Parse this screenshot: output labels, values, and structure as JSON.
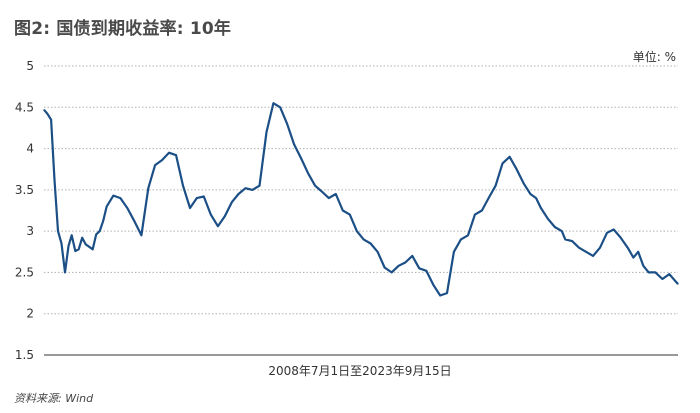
{
  "title": "图2: 国债到期收益率: 10年",
  "unit": "单位: %",
  "source": "资料来源: Wind",
  "colors": {
    "line": "#1b4f86",
    "grid": "#b0b0b0",
    "axis": "#333333"
  },
  "chart_data": {
    "type": "line",
    "title": "图2: 国债到期收益率: 10年",
    "xlabel": "2008年7月1日至2023年9月15日",
    "ylabel": "",
    "ylim": [
      1.5,
      5
    ],
    "yticks": [
      "5",
      "4.5",
      "4",
      "3.5",
      "3",
      "2.5",
      "2",
      "1.5"
    ],
    "grid": "horizontal-dotted",
    "legend": "none",
    "series": [
      {
        "x": [
          "2008-07-01",
          "2008-08-01",
          "2008-09-01",
          "2008-10-01",
          "2008-11-01",
          "2008-12-01",
          "2009-01-01",
          "2009-02-01",
          "2009-03-01",
          "2009-04-01",
          "2009-05-01",
          "2009-06-01",
          "2009-07-01",
          "2009-08-01",
          "2009-09-01",
          "2009-10-01",
          "2009-11-01",
          "2009-12-01",
          "2010-01-01",
          "2010-03-01",
          "2010-05-01",
          "2010-07-01",
          "2010-09-01",
          "2010-11-01",
          "2011-01-01",
          "2011-03-01",
          "2011-05-01",
          "2011-07-01",
          "2011-09-01",
          "2011-11-01",
          "2012-01-01",
          "2012-03-01",
          "2012-05-01",
          "2012-07-01",
          "2012-09-01",
          "2012-11-01",
          "2013-01-01",
          "2013-03-01",
          "2013-05-01",
          "2013-07-01",
          "2013-09-01",
          "2013-11-01",
          "2014-01-01",
          "2014-03-01",
          "2014-05-01",
          "2014-07-01",
          "2014-09-01",
          "2014-11-01",
          "2015-01-01",
          "2015-03-01",
          "2015-05-01",
          "2015-07-01",
          "2015-09-01",
          "2015-11-01",
          "2016-01-01",
          "2016-03-01",
          "2016-05-01",
          "2016-07-01",
          "2016-09-01",
          "2016-11-01",
          "2017-01-01",
          "2017-03-01",
          "2017-05-01",
          "2017-07-01",
          "2017-09-01",
          "2017-11-01",
          "2018-01-01",
          "2018-03-01",
          "2018-05-01",
          "2018-07-01",
          "2018-09-01",
          "2018-11-01",
          "2019-01-01",
          "2019-03-01",
          "2019-05-01",
          "2019-07-01",
          "2019-09-01",
          "2019-11-01",
          "2020-01-01",
          "2020-03-01",
          "2020-04-20",
          "2020-06-01",
          "2020-08-01",
          "2020-10-01",
          "2020-12-01",
          "2021-01-01",
          "2021-03-01",
          "2021-05-01",
          "2021-07-01",
          "2021-09-01",
          "2021-11-01",
          "2022-01-01",
          "2022-03-01",
          "2022-05-01",
          "2022-07-01",
          "2022-08-20",
          "2022-10-01",
          "2022-11-15",
          "2023-01-01",
          "2023-03-01",
          "2023-05-01",
          "2023-07-01",
          "2023-08-20",
          "2023-09-15"
        ],
        "y": [
          4.47,
          4.42,
          4.35,
          3.62,
          3.0,
          2.85,
          2.5,
          2.82,
          2.95,
          2.76,
          2.78,
          2.92,
          2.84,
          2.81,
          2.78,
          2.96,
          3.0,
          3.12,
          3.3,
          3.43,
          3.4,
          3.28,
          3.12,
          2.95,
          3.52,
          3.8,
          3.86,
          3.95,
          3.92,
          3.55,
          3.28,
          3.4,
          3.42,
          3.2,
          3.06,
          3.18,
          3.35,
          3.45,
          3.52,
          3.5,
          3.55,
          4.2,
          4.55,
          4.5,
          4.3,
          4.05,
          3.88,
          3.7,
          3.55,
          3.48,
          3.4,
          3.45,
          3.25,
          3.2,
          3.0,
          2.9,
          2.85,
          2.75,
          2.56,
          2.5,
          2.58,
          2.62,
          2.7,
          2.55,
          2.52,
          2.35,
          2.22,
          2.25,
          2.75,
          2.9,
          2.95,
          3.2,
          3.25,
          3.4,
          3.55,
          3.82,
          3.9,
          3.75,
          3.58,
          3.45,
          3.4,
          3.28,
          3.15,
          3.05,
          3.0,
          2.9,
          2.88,
          2.8,
          2.75,
          2.7,
          2.8,
          2.98,
          3.02,
          2.92,
          2.8,
          2.68,
          2.75,
          2.58,
          2.5,
          2.5,
          2.42,
          2.48,
          2.4,
          2.36
        ]
      }
    ]
  }
}
